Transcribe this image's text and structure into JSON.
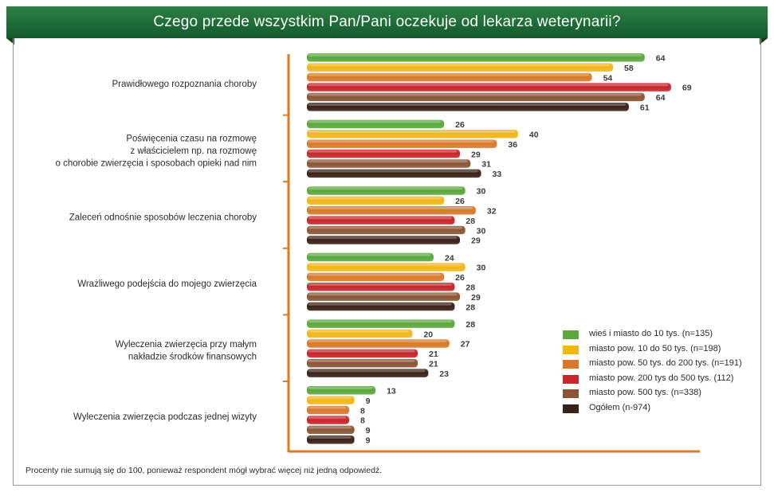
{
  "title": "Czego przede wszystkim Pan/Pani oczekuje od lekarza weterynarii?",
  "footnote": "Procenty nie sumują się do 100, ponieważ respondent mógł wybrać więcej niż jedną odpowiedź.",
  "chart_data": {
    "type": "bar",
    "orientation": "horizontal",
    "categories": [
      [
        "Prawidłowego rozpoznania choroby"
      ],
      [
        "Poświęcenia czasu na rozmowę",
        "z właścicielem np. na rozmowę",
        "o chorobie zwierzęcia i sposobach opieki nad nim"
      ],
      [
        "Zaleceń odnośnie sposobów leczenia choroby"
      ],
      [
        "Wrażliwego podejścia do mojego zwierzęcia"
      ],
      [
        "Wyleczenia zwierzęcia przy małym",
        "nakładzie środków finansowych"
      ],
      [
        "Wyleczenia zwierzęcia podczas jednej wizyty"
      ]
    ],
    "series": [
      {
        "name": "wieś i miasto do 10 tys. (n=135)",
        "color": "#5aa83c",
        "values": [
          64,
          26,
          30,
          24,
          28,
          13
        ]
      },
      {
        "name": "miasto pow. 10 do 50 tys. (n=198)",
        "color": "#f2b619",
        "values": [
          58,
          40,
          26,
          30,
          20,
          9
        ]
      },
      {
        "name": "miasto pow. 50 tys. do 200 tys. (n=191)",
        "color": "#d9782a",
        "values": [
          54,
          36,
          32,
          26,
          27,
          8
        ]
      },
      {
        "name": "miasto pow. 200 tys do 500 tys. (112)",
        "color": "#c8262a",
        "values": [
          69,
          29,
          28,
          28,
          21,
          8
        ]
      },
      {
        "name": "miasto pow. 500 tys. (n=338)",
        "color": "#8a5636",
        "values": [
          64,
          31,
          30,
          29,
          21,
          9
        ]
      },
      {
        "name": "Ogółem (n-974)",
        "color": "#3a2218",
        "values": [
          61,
          33,
          29,
          28,
          23,
          9
        ]
      }
    ],
    "xlim": [
      0,
      74
    ],
    "grid": false,
    "legend_position": "bottom-right",
    "axis_color": "#e07a1c"
  }
}
